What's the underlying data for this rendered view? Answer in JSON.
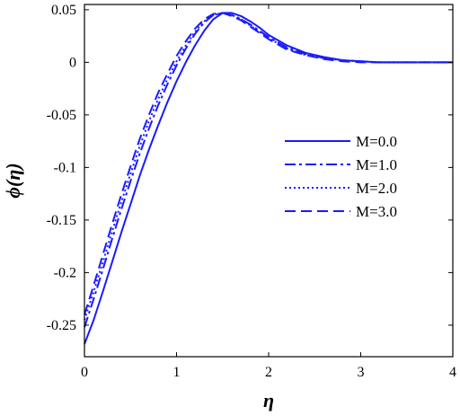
{
  "chart_data": {
    "type": "line",
    "xlabel": "η",
    "ylabel": "ϕ(η)",
    "xlim": [
      0,
      4
    ],
    "ylim": [
      -0.28,
      0.055
    ],
    "xticks": [
      0,
      1,
      2,
      3,
      4
    ],
    "yticks": [
      0.05,
      0,
      -0.05,
      -0.1,
      -0.15,
      -0.2,
      -0.25
    ],
    "ytick_labels": [
      "0.05",
      "0",
      "-0.05",
      "-0.1",
      "-0.15",
      "-0.2",
      "-0.25"
    ],
    "grid": false,
    "legend_position": "right-center",
    "line_color": "#1a1aff",
    "series": [
      {
        "name": "M=0.0",
        "style": "solid",
        "x": [
          0,
          0.1,
          0.2,
          0.3,
          0.4,
          0.5,
          0.6,
          0.7,
          0.8,
          0.9,
          1.0,
          1.1,
          1.2,
          1.3,
          1.4,
          1.5,
          1.6,
          1.7,
          1.8,
          1.9,
          2.0,
          2.2,
          2.4,
          2.6,
          2.8,
          3.0,
          3.2,
          3.5,
          4.0
        ],
        "y": [
          -0.268,
          -0.245,
          -0.218,
          -0.19,
          -0.162,
          -0.135,
          -0.108,
          -0.083,
          -0.06,
          -0.038,
          -0.018,
          0.0,
          0.016,
          0.03,
          0.041,
          0.047,
          0.047,
          0.044,
          0.039,
          0.033,
          0.026,
          0.016,
          0.009,
          0.005,
          0.002,
          0.001,
          0.0,
          0.0,
          0.0
        ]
      },
      {
        "name": "M=1.0",
        "style": "dashdot",
        "x": [
          0,
          0.1,
          0.2,
          0.3,
          0.4,
          0.5,
          0.6,
          0.7,
          0.8,
          0.9,
          1.0,
          1.1,
          1.2,
          1.3,
          1.4,
          1.5,
          1.6,
          1.7,
          1.8,
          1.9,
          2.0,
          2.2,
          2.4,
          2.6,
          2.8,
          3.0,
          3.2,
          3.5,
          4.0
        ],
        "y": [
          -0.252,
          -0.225,
          -0.197,
          -0.168,
          -0.14,
          -0.113,
          -0.087,
          -0.063,
          -0.041,
          -0.021,
          -0.003,
          0.013,
          0.027,
          0.038,
          0.045,
          0.047,
          0.045,
          0.041,
          0.036,
          0.03,
          0.024,
          0.014,
          0.008,
          0.004,
          0.002,
          0.001,
          0.0,
          0.0,
          0.0
        ]
      },
      {
        "name": "M=2.0",
        "style": "dotted",
        "x": [
          0,
          0.1,
          0.2,
          0.3,
          0.4,
          0.5,
          0.6,
          0.7,
          0.8,
          0.9,
          1.0,
          1.1,
          1.2,
          1.3,
          1.4,
          1.5,
          1.6,
          1.7,
          1.8,
          1.9,
          2.0,
          2.2,
          2.4,
          2.6,
          2.8,
          3.0,
          3.2,
          3.5,
          4.0
        ],
        "y": [
          -0.245,
          -0.218,
          -0.19,
          -0.161,
          -0.133,
          -0.106,
          -0.08,
          -0.056,
          -0.035,
          -0.016,
          0.001,
          0.016,
          0.029,
          0.039,
          0.045,
          0.047,
          0.045,
          0.041,
          0.035,
          0.029,
          0.023,
          0.013,
          0.007,
          0.004,
          0.002,
          0.001,
          0.0,
          0.0,
          0.0
        ]
      },
      {
        "name": "M=3.0",
        "style": "dashed",
        "x": [
          0,
          0.1,
          0.2,
          0.3,
          0.4,
          0.5,
          0.6,
          0.7,
          0.8,
          0.9,
          1.0,
          1.1,
          1.2,
          1.3,
          1.4,
          1.5,
          1.6,
          1.7,
          1.8,
          1.9,
          2.0,
          2.2,
          2.4,
          2.6,
          2.8,
          3.0,
          3.2,
          3.5,
          4.0
        ],
        "y": [
          -0.24,
          -0.212,
          -0.183,
          -0.154,
          -0.126,
          -0.099,
          -0.073,
          -0.05,
          -0.029,
          -0.011,
          0.006,
          0.02,
          0.032,
          0.041,
          0.046,
          0.047,
          0.044,
          0.04,
          0.034,
          0.028,
          0.022,
          0.012,
          0.007,
          0.003,
          0.001,
          0.0,
          0.0,
          0.0,
          0.0
        ]
      }
    ]
  }
}
